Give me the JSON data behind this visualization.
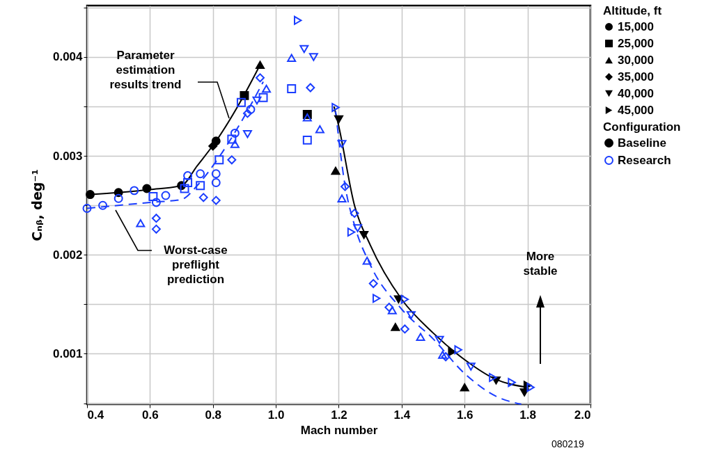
{
  "chart_data": {
    "type": "scatter",
    "xlabel": "Mach number",
    "ylabel": "Cₙᵦ, deg⁻¹",
    "legend_title": "Altitude, ft",
    "legend": "right",
    "grid": true,
    "xlim": [
      0.4,
      2.0
    ],
    "ylim": [
      0.00049,
      0.00452
    ],
    "xticks": [
      0.4,
      0.6,
      0.8,
      {
        "value": 1,
        "label": "1.0"
      },
      1.2,
      1.4,
      1.6,
      1.8,
      {
        "value": 2,
        "label": "2.0"
      }
    ],
    "yticks": [
      {
        "value": 0.0005,
        "label": null
      },
      0.001,
      {
        "value": 0.0015,
        "label": null
      },
      0.002,
      {
        "value": 0.0025,
        "label": null
      },
      0.003,
      {
        "value": 0.0035,
        "label": null
      },
      0.004,
      {
        "value": 0.0045,
        "label": null
      }
    ],
    "series": [
      {
        "name": "15,000",
        "marker": "circle",
        "color": "#000000",
        "x": [
          0.41,
          0.5,
          0.59,
          0.7,
          0.81
        ],
        "values": [
          0.00261,
          0.00263,
          0.00267,
          0.0027,
          0.00315
        ]
      },
      {
        "name": "25,000",
        "marker": "square",
        "color": "#000000",
        "x": [
          0.9,
          1.1
        ],
        "values": [
          0.00361,
          0.00342
        ]
      },
      {
        "name": "30,000",
        "marker": "triangle",
        "color": "#000000",
        "x": [
          0.95,
          1.19,
          1.38,
          1.6
        ],
        "values": [
          0.00392,
          0.00285,
          0.00127,
          0.00066
        ]
      },
      {
        "name": "35,000",
        "marker": "diamond",
        "color": "#000000",
        "x": [
          0.8
        ],
        "values": [
          0.0031
        ]
      },
      {
        "name": "40,000",
        "marker": "triangle-down",
        "color": "#000000",
        "x": [
          1.2,
          1.28,
          1.39,
          1.7,
          1.79
        ],
        "values": [
          0.00337,
          0.0022,
          0.00155,
          0.00073,
          0.00061
        ]
      },
      {
        "name": "45,000",
        "marker": "triangle-right",
        "color": "#000000",
        "x": [
          1.56,
          1.8
        ],
        "values": [
          0.00102,
          0.00068
        ]
      },
      {
        "marker": "circle",
        "color": "#1a3dff",
        "x": [
          0.4,
          0.45,
          0.5,
          0.55,
          0.62,
          0.65,
          0.72,
          0.76,
          0.81,
          0.81,
          0.87,
          0.92
        ],
        "values": [
          0.00247,
          0.0025,
          0.00257,
          0.00265,
          0.00253,
          0.0026,
          0.0028,
          0.00282,
          0.00282,
          0.00273,
          0.00323,
          0.00347
        ]
      },
      {
        "marker": "square",
        "color": "#1a3dff",
        "x": [
          0.61,
          0.71,
          0.72,
          0.76,
          0.82,
          0.86,
          0.89,
          0.96,
          1.05,
          1.1
        ],
        "values": [
          0.00259,
          0.00267,
          0.00273,
          0.0027,
          0.00296,
          0.00317,
          0.00354,
          0.00359,
          0.00368,
          0.00316
        ]
      },
      {
        "marker": "triangle",
        "color": "#1a3dff",
        "x": [
          0.57,
          0.87,
          0.97,
          1.05,
          1.1,
          1.14,
          1.21,
          1.29,
          1.37,
          1.46,
          1.53
        ],
        "values": [
          0.00232,
          0.00312,
          0.00368,
          0.00399,
          0.00339,
          0.00327,
          0.00257,
          0.00194,
          0.00144,
          0.00117,
          0.00099
        ]
      },
      {
        "marker": "diamond",
        "color": "#1a3dff",
        "x": [
          0.62,
          0.62,
          0.77,
          0.81,
          0.86,
          0.91,
          0.95,
          1.11,
          1.22,
          1.25,
          1.31,
          1.36,
          1.41,
          1.54
        ],
        "values": [
          0.00237,
          0.00226,
          0.00258,
          0.00255,
          0.00296,
          0.00343,
          0.00379,
          0.00369,
          0.00269,
          0.00242,
          0.00171,
          0.00147,
          0.00125,
          0.00097
        ]
      },
      {
        "marker": "triangle-down",
        "color": "#1a3dff",
        "x": [
          0.91,
          0.94,
          1.09,
          1.12,
          1.21,
          1.26,
          1.43,
          1.52,
          1.62
        ],
        "values": [
          0.00322,
          0.00356,
          0.00408,
          0.004,
          0.00312,
          0.00227,
          0.00139,
          0.00114,
          0.00087
        ]
      },
      {
        "marker": "triangle-right",
        "color": "#1a3dff",
        "x": [
          1.07,
          1.19,
          1.24,
          1.32,
          1.41,
          1.58,
          1.69,
          1.75,
          1.81
        ],
        "values": [
          0.00437,
          0.00349,
          0.00223,
          0.00156,
          0.00155,
          0.00104,
          0.00076,
          0.00071,
          0.00066
        ]
      },
      {
        "type": "line",
        "marker": "none",
        "line_style": "solid",
        "color": "#000000",
        "x": [
          0.41,
          0.5,
          0.6,
          0.7,
          0.75,
          0.81,
          0.9,
          0.95,
          1.07,
          1.185,
          1.2,
          1.25,
          1.3,
          1.4,
          1.5,
          1.6,
          1.7,
          1.8
        ],
        "values": [
          0.00261,
          0.00263,
          0.00266,
          0.0027,
          0.0029,
          0.00315,
          0.00362,
          0.00392,
          null,
          0.0035,
          0.0033,
          0.0025,
          0.0021,
          0.00155,
          0.00121,
          0.00094,
          0.00074,
          0.00066
        ]
      },
      {
        "type": "line",
        "marker": "none",
        "line_style": "dashed",
        "color": "#1a3dff",
        "x": [
          0.4,
          0.6,
          0.7,
          0.75,
          0.8,
          0.9,
          0.96,
          1.07,
          1.19,
          1.22,
          1.25,
          1.3,
          1.4,
          1.5,
          1.6,
          1.7,
          1.78
        ],
        "values": [
          0.00247,
          0.00253,
          0.00256,
          0.0027,
          0.0029,
          0.0034,
          0.00375,
          null,
          0.00345,
          0.0027,
          0.0023,
          0.0019,
          0.00145,
          0.00115,
          0.0008,
          0.00057,
          0.00049
        ]
      }
    ],
    "annotations": [
      "Parameter estimation results trend",
      "Worst-case preflight prediction",
      "More stable",
      "Configuration",
      "Baseline",
      "Research",
      "080219"
    ]
  }
}
